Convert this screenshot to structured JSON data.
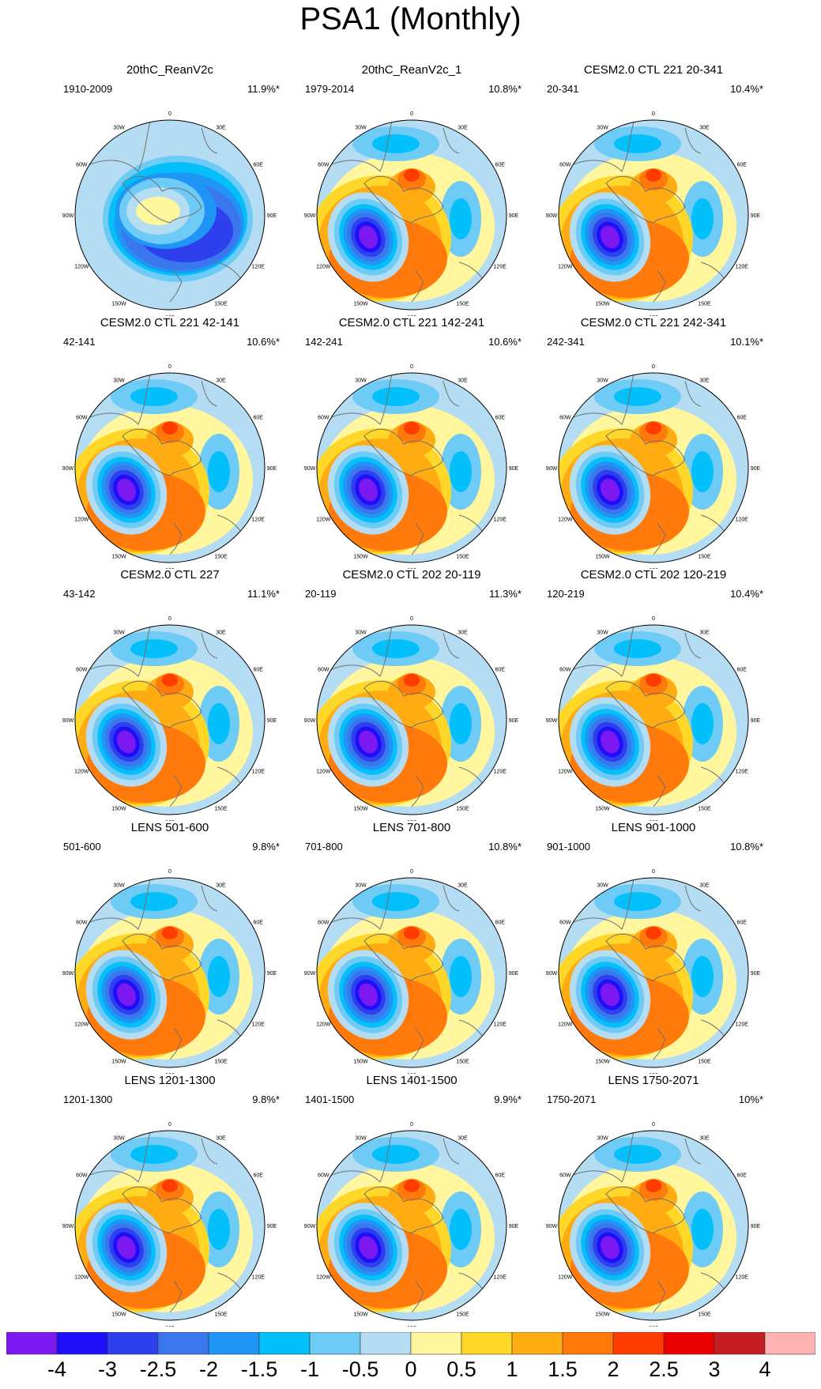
{
  "title": "PSA1 (Monthly)",
  "chart_data": {
    "type": "heatmap",
    "projection": "south polar stereographic",
    "variable": "PSA1 (Monthly)",
    "longitude_labels": [
      "0",
      "30E",
      "60E",
      "90E",
      "120E",
      "150E",
      "180",
      "150W",
      "120W",
      "90W",
      "60W",
      "30W"
    ],
    "panels": [
      {
        "title": "20thC_ReanV2c",
        "period": "1910-2009",
        "percent": "11.9%*",
        "pattern": "ring"
      },
      {
        "title": "20thC_ReanV2c_1",
        "period": "1979-2014",
        "percent": "10.8%*",
        "pattern": "psa"
      },
      {
        "title": "CESM2.0 CTL 221 20-341",
        "period": "20-341",
        "percent": "10.4%*",
        "pattern": "psa"
      },
      {
        "title": "CESM2.0 CTL 221 42-141",
        "period": "42-141",
        "percent": "10.6%*",
        "pattern": "psa"
      },
      {
        "title": "CESM2.0 CTL 221 142-241",
        "period": "142-241",
        "percent": "10.6%*",
        "pattern": "psa"
      },
      {
        "title": "CESM2.0 CTL 221 242-341",
        "period": "242-341",
        "percent": "10.1%*",
        "pattern": "psa"
      },
      {
        "title": "CESM2.0 CTL 227",
        "period": "43-142",
        "percent": "11.1%*",
        "pattern": "psa"
      },
      {
        "title": "CESM2.0 CTL 202 20-119",
        "period": "20-119",
        "percent": "11.3%*",
        "pattern": "psa"
      },
      {
        "title": "CESM2.0 CTL 202 120-219",
        "period": "120-219",
        "percent": "10.4%*",
        "pattern": "psa"
      },
      {
        "title": "LENS 501-600",
        "period": "501-600",
        "percent": "9.8%*",
        "pattern": "psa"
      },
      {
        "title": "LENS 701-800",
        "period": "701-800",
        "percent": "10.8%*",
        "pattern": "psa"
      },
      {
        "title": "LENS 901-1000",
        "period": "901-1000",
        "percent": "10.8%*",
        "pattern": "psa"
      },
      {
        "title": "LENS 1201-1300",
        "period": "1201-1300",
        "percent": "9.8%*",
        "pattern": "psa"
      },
      {
        "title": "LENS 1401-1500",
        "period": "1401-1500",
        "percent": "9.9%*",
        "pattern": "psa"
      },
      {
        "title": "LENS 1750-2071",
        "period": "1750-2071",
        "percent": "10%*",
        "pattern": "psa"
      }
    ],
    "colorbar": {
      "levels": [
        "-4",
        "-3",
        "-2.5",
        "-2",
        "-1.5",
        "-1",
        "-0.5",
        "0",
        "0.5",
        "1",
        "1.5",
        "2",
        "2.5",
        "3",
        "4"
      ],
      "colors": [
        "#7c18f0",
        "#1d0ff7",
        "#2e3fee",
        "#3a77ee",
        "#1f96f5",
        "#04c0fa",
        "#6ecbf5",
        "#b4dcf2",
        "#fff69e",
        "#ffd729",
        "#ffac12",
        "#ff7a0a",
        "#ff3c00",
        "#ea0000",
        "#c41d22",
        "#ffb3b3"
      ]
    }
  }
}
